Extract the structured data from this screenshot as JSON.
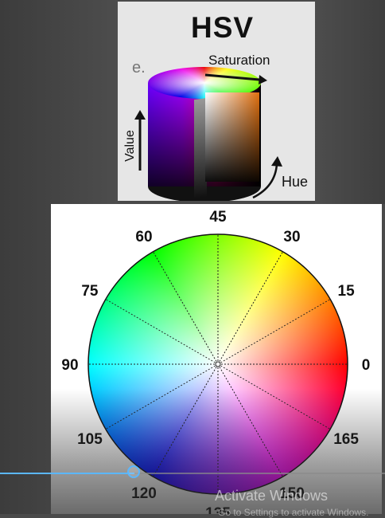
{
  "hsv_card": {
    "title": "HSV",
    "corner_letter": "e.",
    "labels": {
      "saturation": "Saturation",
      "hue": "Hue",
      "value": "Value"
    }
  },
  "hue_wheel": {
    "angle_labels": [
      "0",
      "15",
      "30",
      "45",
      "60",
      "75",
      "90",
      "105",
      "120",
      "135",
      "150",
      "165"
    ]
  },
  "player": {
    "progress_fraction": 0.35
  },
  "watermark": {
    "title": "Activate Windows",
    "subtitle": "Go to Settings to activate Windows."
  }
}
